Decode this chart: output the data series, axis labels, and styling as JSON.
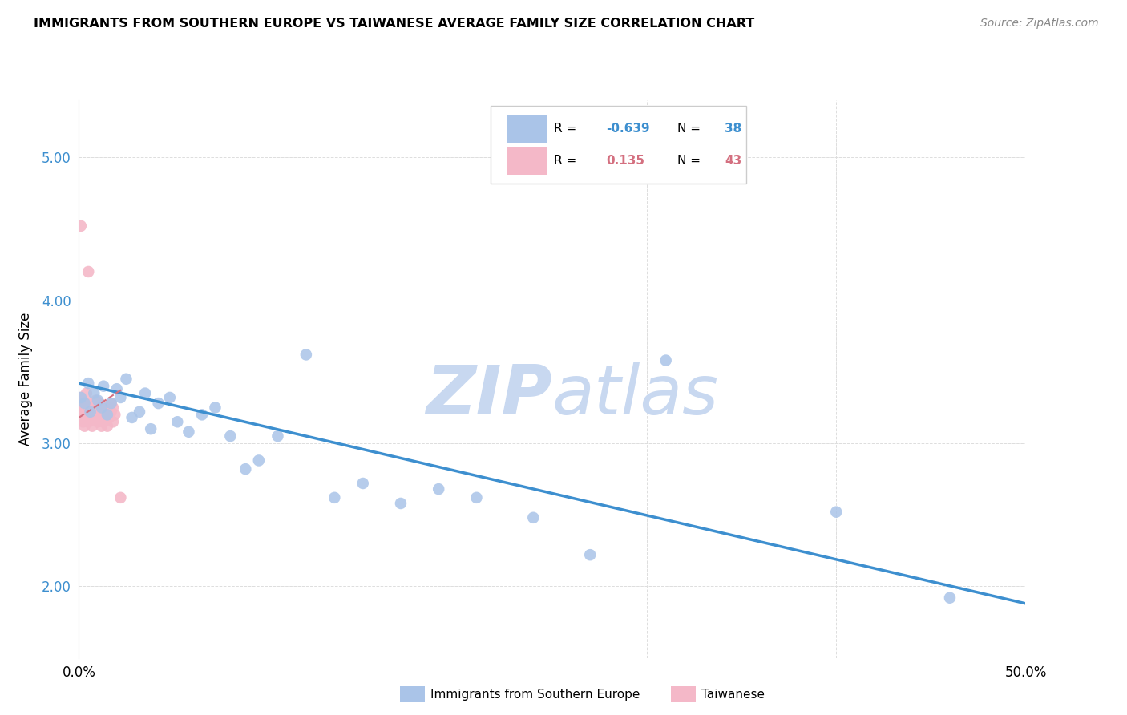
{
  "title": "IMMIGRANTS FROM SOUTHERN EUROPE VS TAIWANESE AVERAGE FAMILY SIZE CORRELATION CHART",
  "source": "Source: ZipAtlas.com",
  "ylabel": "Average Family Size",
  "yticks": [
    2.0,
    3.0,
    4.0,
    5.0
  ],
  "xlim": [
    0.0,
    0.5
  ],
  "ylim": [
    1.5,
    5.4
  ],
  "legend_blue_r": "-0.639",
  "legend_blue_n": "38",
  "legend_pink_r": "0.135",
  "legend_pink_n": "43",
  "blue_scatter_x": [
    0.001,
    0.003,
    0.005,
    0.006,
    0.008,
    0.01,
    0.012,
    0.013,
    0.015,
    0.017,
    0.02,
    0.022,
    0.025,
    0.028,
    0.032,
    0.035,
    0.038,
    0.042,
    0.048,
    0.052,
    0.058,
    0.065,
    0.072,
    0.08,
    0.088,
    0.095,
    0.105,
    0.12,
    0.135,
    0.15,
    0.17,
    0.19,
    0.21,
    0.24,
    0.27,
    0.31,
    0.4,
    0.46
  ],
  "blue_scatter_y": [
    3.32,
    3.28,
    3.42,
    3.22,
    3.35,
    3.3,
    3.25,
    3.4,
    3.2,
    3.28,
    3.38,
    3.32,
    3.45,
    3.18,
    3.22,
    3.35,
    3.1,
    3.28,
    3.32,
    3.15,
    3.08,
    3.2,
    3.25,
    3.05,
    2.82,
    2.88,
    3.05,
    3.62,
    2.62,
    2.72,
    2.58,
    2.68,
    2.62,
    2.48,
    2.22,
    3.58,
    2.52,
    1.92
  ],
  "pink_scatter_x": [
    0.0005,
    0.001,
    0.0012,
    0.0015,
    0.0018,
    0.002,
    0.0022,
    0.003,
    0.003,
    0.0035,
    0.004,
    0.004,
    0.005,
    0.005,
    0.006,
    0.006,
    0.007,
    0.007,
    0.008,
    0.008,
    0.009,
    0.009,
    0.01,
    0.01,
    0.011,
    0.011,
    0.012,
    0.012,
    0.013,
    0.013,
    0.014,
    0.014,
    0.015,
    0.015,
    0.016,
    0.016,
    0.017,
    0.017,
    0.018,
    0.018,
    0.019,
    0.005,
    0.022
  ],
  "pink_scatter_y": [
    3.28,
    3.22,
    3.32,
    3.18,
    3.25,
    3.3,
    3.15,
    3.25,
    3.12,
    3.28,
    3.2,
    3.35,
    3.22,
    3.15,
    3.28,
    3.18,
    3.22,
    3.12,
    3.25,
    3.18,
    3.2,
    3.3,
    3.15,
    3.22,
    3.18,
    3.28,
    3.2,
    3.12,
    3.25,
    3.15,
    3.18,
    3.22,
    3.12,
    3.2,
    3.25,
    3.18,
    3.22,
    3.28,
    3.15,
    3.25,
    3.2,
    4.2,
    2.62
  ],
  "pink_outlier_x": [
    0.001
  ],
  "pink_outlier_y": [
    4.52
  ],
  "blue_line_x": [
    0.0,
    0.5
  ],
  "blue_line_y": [
    3.42,
    1.88
  ],
  "pink_line_x": [
    0.0,
    0.023
  ],
  "pink_line_y": [
    3.18,
    3.38
  ],
  "scatter_size": 110,
  "blue_color": "#aac4e8",
  "blue_line_color": "#3d8fcf",
  "pink_color": "#f4b8c8",
  "pink_line_color": "#d47080",
  "watermark_zip": "ZIP",
  "watermark_atlas": "atlas",
  "watermark_color": "#c8d8f0",
  "background_color": "#ffffff",
  "grid_color": "#dddddd"
}
